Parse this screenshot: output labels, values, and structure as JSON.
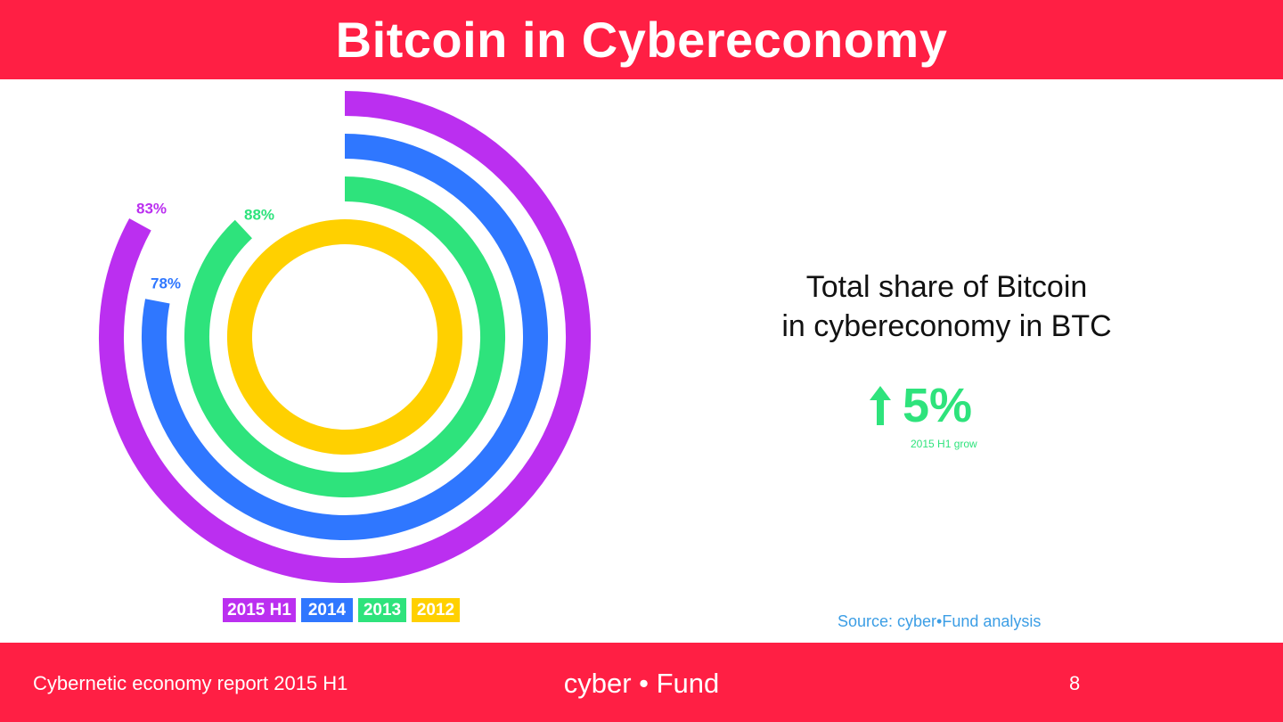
{
  "header": {
    "title": "Bitcoin in Cybereconomy"
  },
  "chart_data": {
    "type": "radial-bar",
    "series": [
      {
        "name": "2015 H1",
        "value": 83,
        "label": "83%",
        "color": "#bb2ff0"
      },
      {
        "name": "2014",
        "value": 78,
        "label": "78%",
        "color": "#2f77ff"
      },
      {
        "name": "2013",
        "value": 88,
        "label": "88%",
        "color": "#2ee37c"
      },
      {
        "name": "2012",
        "value": 100,
        "label": "",
        "color": "#ffd000"
      }
    ],
    "unit": "%",
    "max": 100,
    "legend_position": "bottom"
  },
  "panel": {
    "title_line1": "Total share of Bitcoin",
    "title_line2": "in cybereconomy in BTC",
    "stat_value": "5%",
    "stat_caption": "2015 H1 grow",
    "stat_icon": "arrow-up-icon",
    "source": "Source: cyber•Fund analysis"
  },
  "footer": {
    "report": "Cybernetic economy report 2015 H1",
    "brand": "cyber • Fund",
    "page_number": "8"
  },
  "colors": {
    "brand_red": "#ff1f44",
    "green": "#2ee37c",
    "source_blue": "#3c9ee5"
  }
}
